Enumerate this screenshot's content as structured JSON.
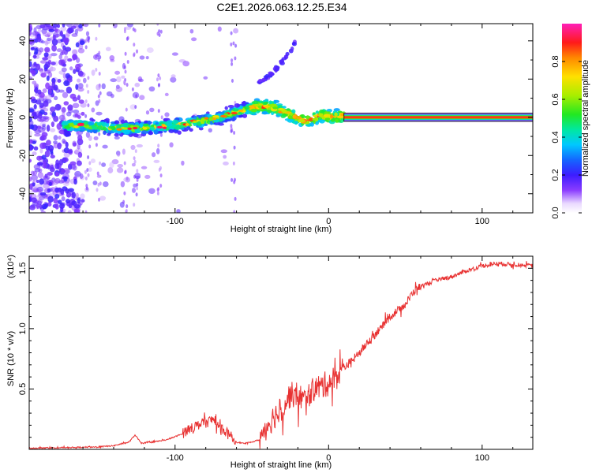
{
  "chart_data": [
    {
      "type": "heatmap",
      "title": "C2E1.2026.063.12.25.E34",
      "xlabel": "Height of straight line (km)",
      "ylabel": "Frequency (Hz)",
      "xlim": [
        -195,
        133
      ],
      "ylim": [
        -50,
        49
      ],
      "xticks": [
        -100,
        0,
        100
      ],
      "xtick_labels": [
        "-100",
        "0",
        "100"
      ],
      "yticks": [
        -40,
        -20,
        0,
        20,
        40
      ],
      "ytick_labels": [
        "-40",
        "-20",
        "0",
        "20",
        "40"
      ],
      "colorbar": {
        "label": "Normalized spectral amplitude",
        "range": [
          0,
          1
        ],
        "ticks": [
          0,
          0.2,
          0.4,
          0.6,
          0.8
        ],
        "tick_labels": [
          "0.0",
          "0.2",
          "0.4",
          "0.6",
          "0.8"
        ]
      },
      "ridge": {
        "x": [
          -170,
          -150,
          -130,
          -110,
          -90,
          -70,
          -55,
          -45,
          -35,
          -25,
          -15,
          -5,
          5,
          10
        ],
        "y": [
          -4,
          -5,
          -6,
          -5,
          -3,
          0,
          4,
          6,
          5,
          1,
          -2,
          1,
          0,
          1
        ]
      },
      "constant_line": {
        "x_start": 10,
        "x_end": 133,
        "y": 0
      },
      "secondary_branch": {
        "x": [
          -45,
          -38,
          -32,
          -26,
          -22
        ],
        "y": [
          18,
          22,
          27,
          33,
          40
        ]
      }
    },
    {
      "type": "line",
      "xlabel": "Height of straight line (km)",
      "ylabel": "SNR (10 * v/v)",
      "scale_label": "(x10⁴)",
      "xlim": [
        -195,
        133
      ],
      "ylim": [
        0,
        1.6
      ],
      "xticks": [
        -100,
        0,
        100
      ],
      "xtick_labels": [
        "-100",
        "0",
        "100"
      ],
      "yticks": [
        0.5,
        1.0,
        1.5
      ],
      "ytick_labels": [
        "0.5",
        "1.0",
        "1.5"
      ],
      "series": [
        {
          "name": "SNR",
          "color": "#e83232",
          "x": [
            -195,
            -170,
            -150,
            -140,
            -130,
            -126,
            -122,
            -115,
            -105,
            -95,
            -90,
            -85,
            -80,
            -75,
            -70,
            -65,
            -60,
            -55,
            -50,
            -45,
            -40,
            -35,
            -30,
            -25,
            -20,
            -15,
            -10,
            -5,
            0,
            5,
            10,
            15,
            20,
            30,
            40,
            50,
            55,
            60,
            70,
            80,
            90,
            100,
            110,
            120,
            133
          ],
          "y": [
            0.01,
            0.015,
            0.02,
            0.03,
            0.06,
            0.12,
            0.05,
            0.06,
            0.08,
            0.13,
            0.18,
            0.2,
            0.22,
            0.25,
            0.18,
            0.12,
            0.06,
            0.05,
            0.06,
            0.08,
            0.2,
            0.28,
            0.35,
            0.45,
            0.45,
            0.4,
            0.5,
            0.52,
            0.55,
            0.6,
            0.68,
            0.73,
            0.8,
            0.95,
            1.1,
            1.2,
            1.3,
            1.35,
            1.4,
            1.43,
            1.48,
            1.52,
            1.54,
            1.53,
            1.52
          ]
        }
      ]
    }
  ]
}
